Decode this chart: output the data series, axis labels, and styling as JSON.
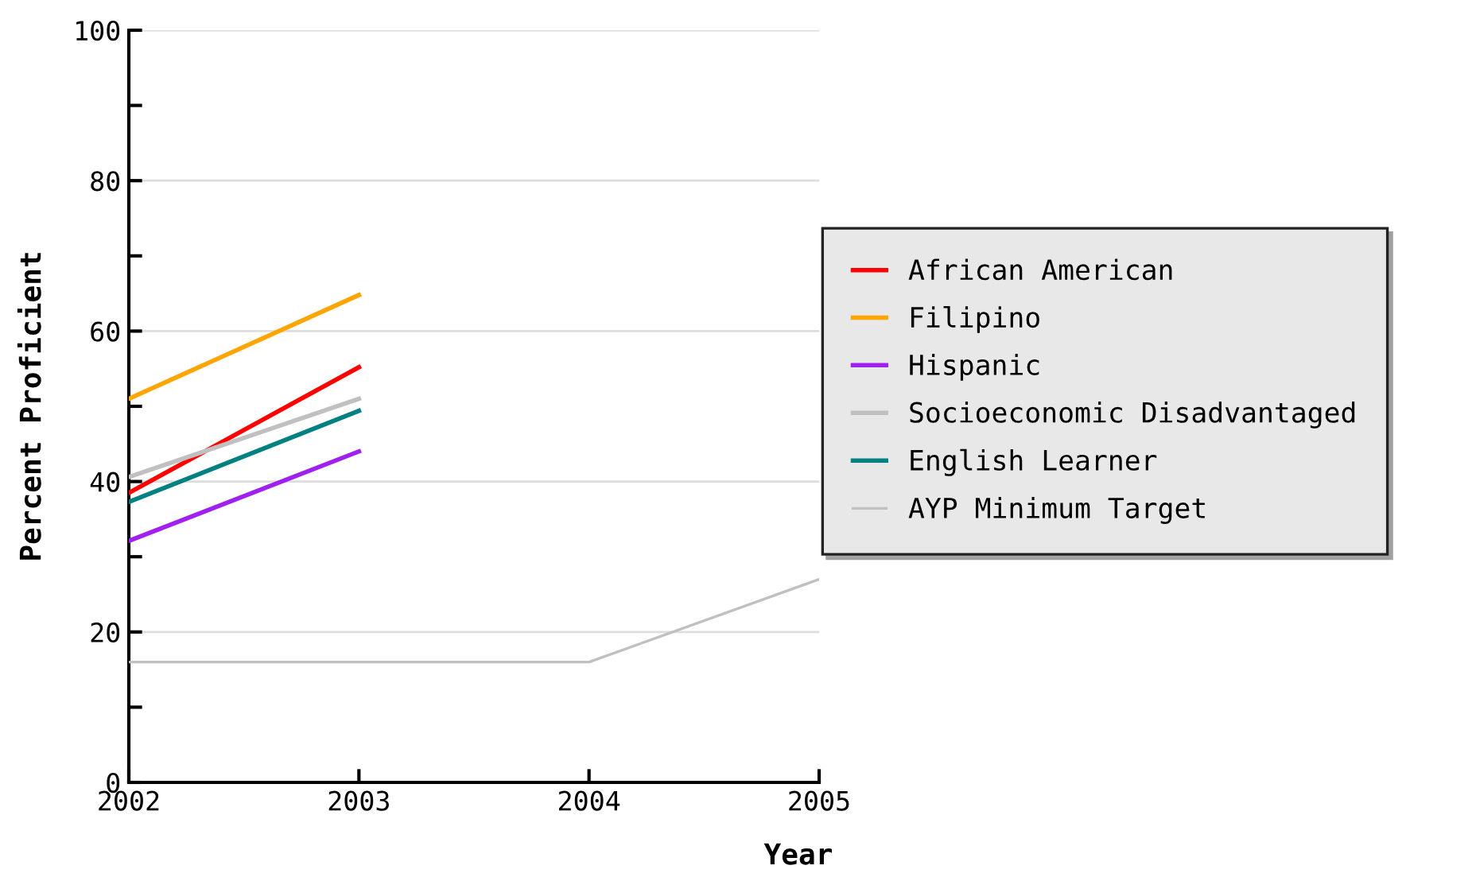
{
  "chart_data": {
    "type": "line",
    "xlabel": "Year",
    "ylabel": "Percent Proficient",
    "x": [
      2002,
      2003,
      2004,
      2005
    ],
    "series": [
      {
        "name": "African American",
        "color": "#ff0000",
        "values": [
          38.5,
          55.2,
          null,
          null
        ]
      },
      {
        "name": "Filipino",
        "color": "#ffa500",
        "values": [
          51.0,
          64.8,
          null,
          null
        ]
      },
      {
        "name": "Hispanic",
        "color": "#a020f0",
        "values": [
          32.1,
          44.0,
          null,
          null
        ]
      },
      {
        "name": "Socioeconomic Disadvantaged",
        "color": "#c0c0c0",
        "values": [
          40.6,
          51.0,
          null,
          null
        ]
      },
      {
        "name": "English Learner",
        "color": "#008080",
        "values": [
          37.3,
          49.4,
          null,
          null
        ]
      },
      {
        "name": "AYP Minimum Target",
        "color": "#c0c0c0",
        "values": [
          16,
          16,
          16,
          27
        ]
      }
    ],
    "xlim": [
      2002,
      2005
    ],
    "xticks": [
      2002,
      2003,
      2004,
      2005
    ],
    "ylim": [
      0,
      100
    ],
    "yticks": [
      0,
      {
        "value": 10,
        "label": null
      },
      20,
      {
        "value": 30,
        "label": null
      },
      40,
      {
        "value": 50,
        "label": null
      },
      60,
      {
        "value": 70,
        "label": null
      },
      80,
      {
        "value": 90,
        "label": null
      },
      100
    ],
    "grid": "y",
    "legend": "right",
    "marker": "none",
    "line_style": "solid"
  }
}
